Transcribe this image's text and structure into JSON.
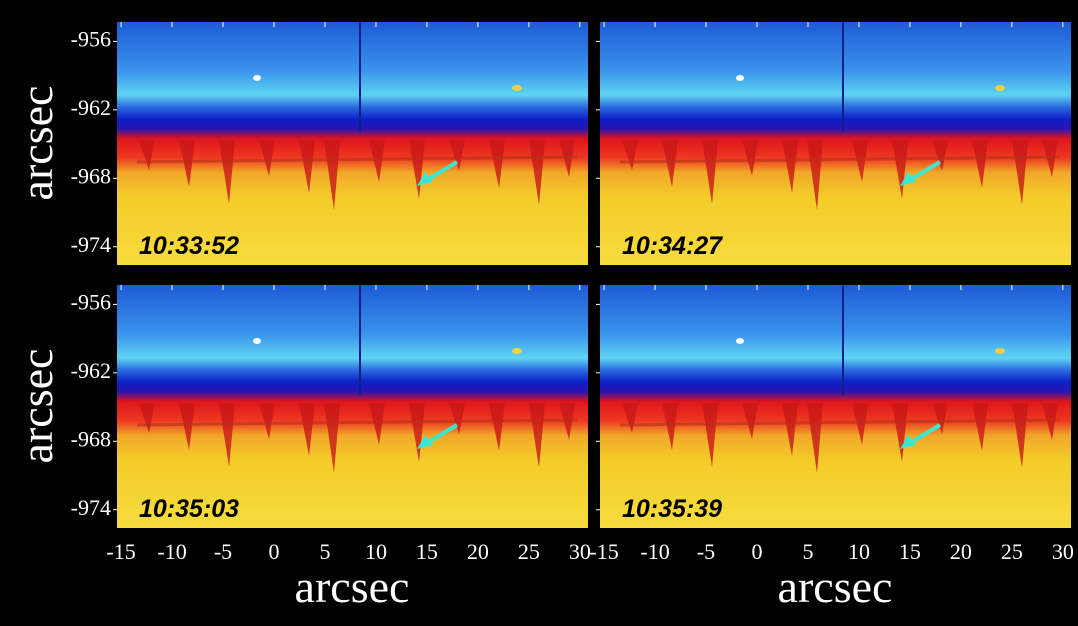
{
  "panels": [
    {
      "timestamp": "10:33:52"
    },
    {
      "timestamp": "10:34:27"
    },
    {
      "timestamp": "10:35:03"
    },
    {
      "timestamp": "10:35:39"
    }
  ],
  "y_axis": {
    "label": "arcsec",
    "ticks": [
      -956,
      -962,
      -968,
      -974
    ],
    "lim": [
      -954.3,
      -975.6
    ]
  },
  "x_axis": {
    "label": "arcsec",
    "ticks": [
      -15,
      -10,
      -5,
      0,
      5,
      10,
      15,
      20,
      25,
      30
    ],
    "lim": [
      -15.4,
      30.8
    ]
  }
}
